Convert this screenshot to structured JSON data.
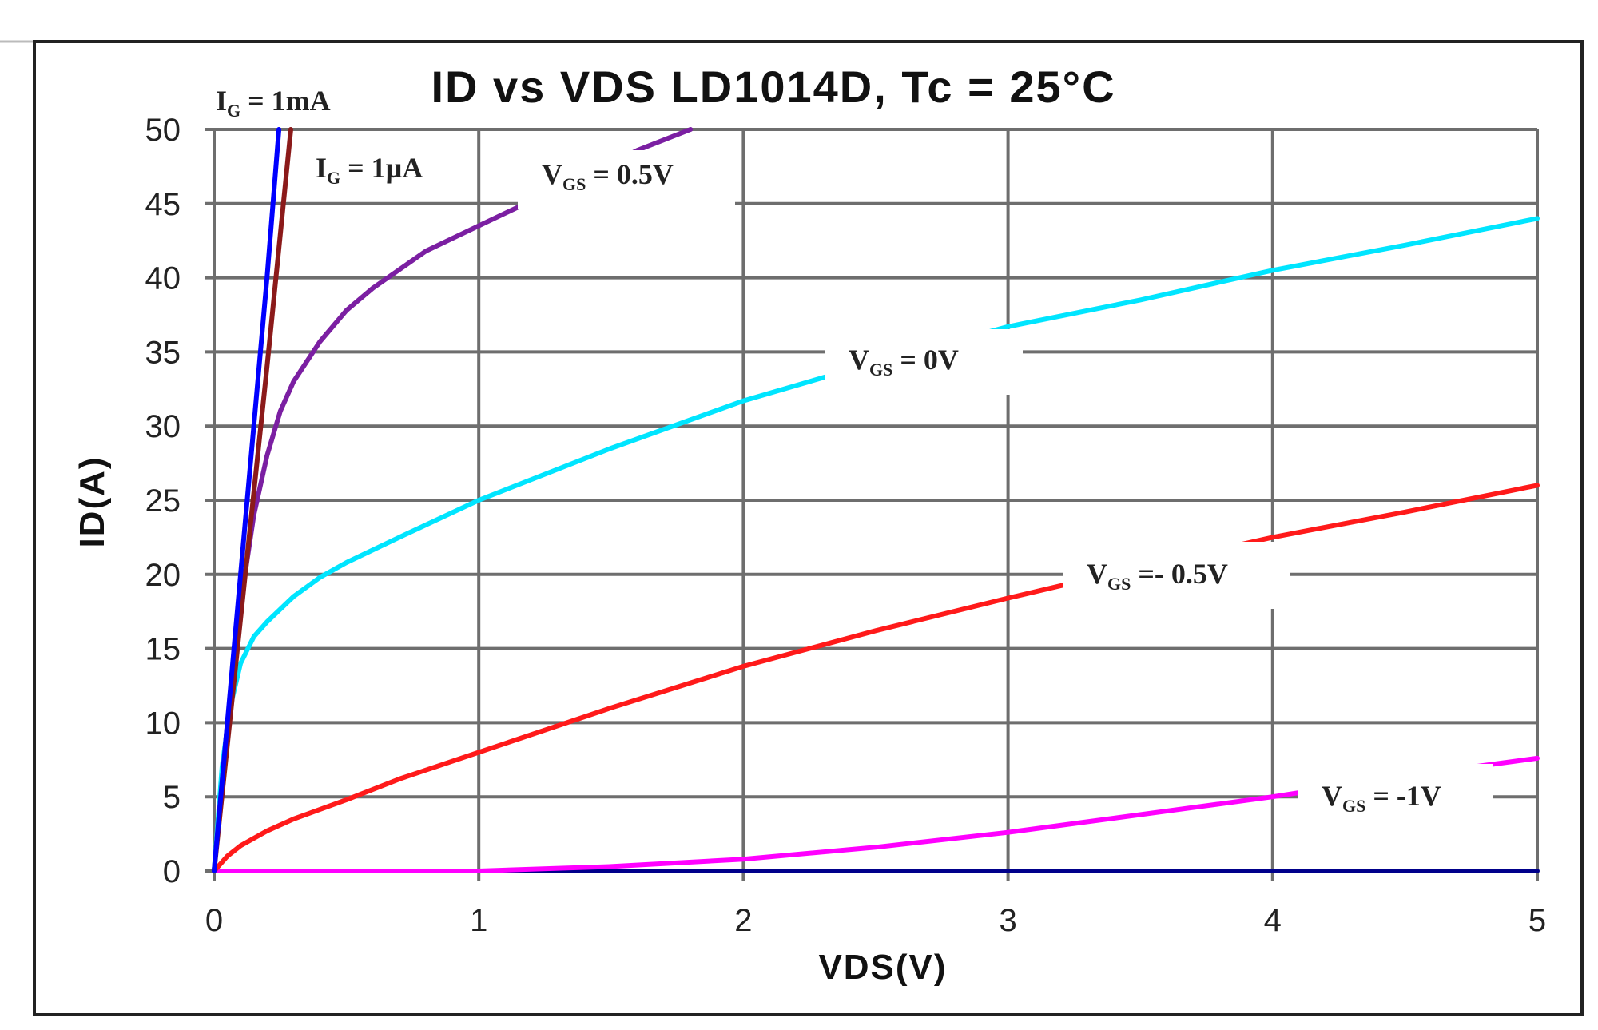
{
  "chart_data": {
    "type": "line",
    "title": "ID vs VDS  LD1014D, Tc = 25°C",
    "xlabel": "VDS(V)",
    "ylabel": "ID(A)",
    "xlim": [
      0,
      5
    ],
    "ylim": [
      0,
      50
    ],
    "x_ticks": [
      0,
      1,
      2,
      3,
      4,
      5
    ],
    "y_ticks": [
      0,
      5,
      10,
      15,
      20,
      25,
      30,
      35,
      40,
      45,
      50
    ],
    "grid": true,
    "legend": "none (inline curve labels)",
    "series": [
      {
        "name": "IG = 1mA",
        "label_main": "I",
        "label_sub": "G",
        "label_rest": " = 1mA",
        "color": "#0000ff",
        "x": [
          0,
          0.1,
          0.2,
          0.245
        ],
        "y": [
          0,
          20,
          40,
          50
        ]
      },
      {
        "name": "IG = 1µA",
        "label_main": "I",
        "label_sub": "G",
        "label_rest": " = 1µA",
        "color": "#8b1a1a",
        "x": [
          0,
          0.1,
          0.2,
          0.29
        ],
        "y": [
          0,
          17,
          34,
          50
        ]
      },
      {
        "name": "VGS = 0.5V",
        "label_main": "V",
        "label_sub": "GS",
        "label_rest": " = 0.5V",
        "color": "#7b1fa2",
        "x": [
          0,
          0.05,
          0.1,
          0.15,
          0.2,
          0.25,
          0.3,
          0.4,
          0.5,
          0.6,
          0.8,
          1.0,
          1.2,
          1.4,
          1.6,
          1.8
        ],
        "y": [
          0,
          10,
          18,
          24,
          28,
          31,
          33,
          35.7,
          37.8,
          39.3,
          41.8,
          43.5,
          45.2,
          46.8,
          48.6,
          50
        ]
      },
      {
        "name": "VGS = 0V",
        "label_main": "V",
        "label_sub": "GS",
        "label_rest": " = 0V",
        "color": "#00e5ff",
        "x": [
          0,
          0.03,
          0.06,
          0.1,
          0.15,
          0.2,
          0.3,
          0.4,
          0.5,
          0.7,
          1.0,
          1.5,
          2.0,
          2.5,
          3.0,
          3.5,
          4.0,
          4.5,
          5.0
        ],
        "y": [
          0,
          7,
          11,
          14,
          15.8,
          16.8,
          18.5,
          19.8,
          20.8,
          22.5,
          25,
          28.5,
          31.7,
          34.3,
          36.7,
          38.5,
          40.5,
          42.2,
          44
        ]
      },
      {
        "name": "VGS =- 0.5V",
        "label_main": "V",
        "label_sub": "GS",
        "label_rest": " =- 0.5V",
        "color": "#ff1a1a",
        "x": [
          0,
          0.05,
          0.1,
          0.2,
          0.3,
          0.5,
          0.7,
          1.0,
          1.5,
          2.0,
          2.5,
          3.0,
          3.5,
          4.0,
          4.5,
          5.0
        ],
        "y": [
          0,
          1,
          1.7,
          2.7,
          3.5,
          4.8,
          6.2,
          8,
          11,
          13.8,
          16.2,
          18.4,
          20.5,
          22.5,
          24.2,
          26
        ]
      },
      {
        "name": "VGS = -1V",
        "label_main": "V",
        "label_sub": "GS",
        "label_rest": " = -1V",
        "color": "#ff00ff",
        "x": [
          0,
          1.0,
          1.5,
          2.0,
          2.5,
          3.0,
          3.5,
          4.0,
          4.5,
          5.0
        ],
        "y": [
          0,
          0,
          0.3,
          0.8,
          1.6,
          2.6,
          3.8,
          5.0,
          6.4,
          7.6
        ]
      },
      {
        "name": "baseline",
        "color": "#00008b",
        "x": [
          0,
          5
        ],
        "y": [
          0,
          0
        ]
      }
    ]
  }
}
